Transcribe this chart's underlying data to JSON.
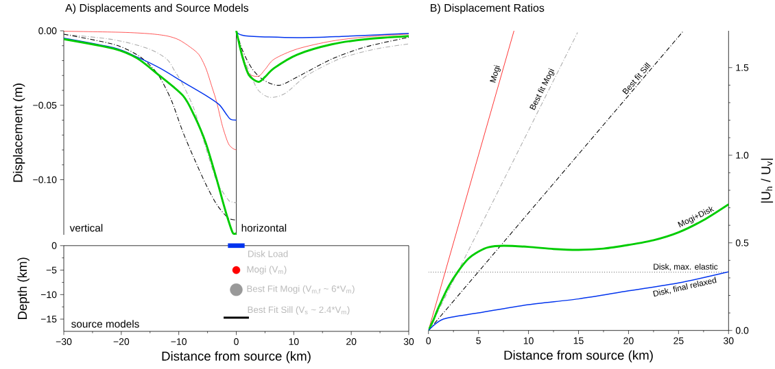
{
  "chart_data": [
    {
      "type": "line",
      "title": "A) Displacements and Source Models",
      "ylabel": "Displacement (m)",
      "xlim": [
        -30,
        30
      ],
      "ylim": [
        -0.137,
        0
      ],
      "tick_labels": "y",
      "xticks": [
        -30,
        -20,
        -10,
        0,
        10,
        20,
        30
      ],
      "yticks": [
        {
          "value": 0,
          "label": "0.00"
        },
        {
          "value": -0.05,
          "label": "−0.05"
        },
        {
          "value": -0.1,
          "label": "−0.10"
        }
      ],
      "annotations": [
        "vertical",
        "horizontal"
      ],
      "ref_lines": [
        {
          "axis": "x",
          "value": 0,
          "color": "#000000"
        }
      ],
      "series": [
        {
          "color": "#ff0000",
          "x": [
            -30,
            -20,
            -15,
            -12,
            -10,
            -8,
            -6.5,
            -5.3,
            -4.2,
            -3.4,
            -2.4,
            -1.4,
            -0.6,
            0
          ],
          "values": [
            -0.0003,
            -0.001,
            -0.002,
            -0.0035,
            -0.006,
            -0.011,
            -0.016,
            -0.025,
            -0.038,
            -0.048,
            -0.064,
            -0.0755,
            -0.079,
            -0.08
          ]
        },
        {
          "color": "#aaaaaa",
          "line_style": "dashdot",
          "x": [
            -30,
            -21.3,
            -15.3,
            -12.1,
            -10.7,
            -9.3,
            -7.3,
            -5.3,
            -3.4,
            -1.4,
            -0.6,
            0
          ],
          "values": [
            -0.0023,
            -0.006,
            -0.012,
            -0.019,
            -0.027,
            -0.036,
            -0.053,
            -0.0785,
            -0.101,
            -0.1135,
            -0.115,
            -0.1155
          ]
        },
        {
          "color": "#000000",
          "line_style": "dashdot",
          "x": [
            -30,
            -21.3,
            -17.3,
            -14.9,
            -13.3,
            -11.3,
            -9.3,
            -7.3,
            -5.3,
            -3.4,
            -1.4,
            0
          ],
          "values": [
            -0.0023,
            -0.0091,
            -0.016,
            -0.0236,
            -0.0313,
            -0.0465,
            -0.0678,
            -0.086,
            -0.103,
            -0.1166,
            -0.1257,
            -0.127
          ]
        },
        {
          "color": "#0033ee",
          "x": [
            -30,
            -21.3,
            -17.3,
            -13.3,
            -9.3,
            -5.3,
            -3,
            -1.8,
            -1,
            0
          ],
          "values": [
            -0.0049,
            -0.0114,
            -0.0175,
            -0.025,
            -0.0343,
            -0.0434,
            -0.0495,
            -0.0556,
            -0.0594,
            -0.06
          ]
        },
        {
          "color": "#00cc00",
          "x": [
            -30,
            -21.3,
            -17.3,
            -13.7,
            -9.3,
            -7.3,
            -5.3,
            -3.4,
            -2.2,
            -1.4,
            -0.6,
            0
          ],
          "values": [
            -0.0056,
            -0.012,
            -0.0183,
            -0.029,
            -0.0434,
            -0.057,
            -0.0754,
            -0.0998,
            -0.1166,
            -0.127,
            -0.1357,
            -0.136
          ]
        },
        {
          "color": "#ff0000",
          "x": [
            0,
            1.07,
            2.2,
            3.85,
            5,
            6.6,
            10.6,
            16.6,
            22.6,
            30
          ],
          "values": [
            0,
            -0.016,
            -0.0285,
            -0.0305,
            -0.026,
            -0.019,
            -0.0122,
            -0.0069,
            -0.0041,
            -0.0022
          ]
        },
        {
          "color": "#aaaaaa",
          "line_style": "dashdot",
          "x": [
            0,
            1.07,
            2.67,
            3.85,
            5.85,
            8.5,
            12.4,
            18.3,
            24.3,
            30
          ],
          "values": [
            0,
            -0.016,
            -0.031,
            -0.04,
            -0.0447,
            -0.042,
            -0.0297,
            -0.0183,
            -0.0122,
            -0.0088
          ]
        },
        {
          "color": "#000000",
          "line_style": "dashdot",
          "x": [
            0,
            1.07,
            2.67,
            4.65,
            7.4,
            10.6,
            16.6,
            22.6,
            30
          ],
          "values": [
            0,
            -0.013,
            -0.025,
            -0.0328,
            -0.0366,
            -0.031,
            -0.019,
            -0.0107,
            -0.0044
          ]
        },
        {
          "color": "#0033ee",
          "x": [
            0,
            1.5,
            10.6,
            18.3,
            30
          ],
          "values": [
            0,
            -0.0033,
            -0.0046,
            -0.0038,
            -0.0017
          ]
        },
        {
          "color": "#00cc00",
          "x": [
            0,
            1.07,
            2.2,
            3.85,
            5,
            6.6,
            10.6,
            16.6,
            22.6,
            30
          ],
          "values": [
            0,
            -0.0175,
            -0.0297,
            -0.0343,
            -0.031,
            -0.025,
            -0.016,
            -0.0091,
            -0.0056,
            -0.0036
          ]
        }
      ]
    },
    {
      "type": "scatter",
      "xlabel": "Distance from source (km)",
      "ylabel": "Depth (km)",
      "xlim": [
        -30,
        30
      ],
      "ylim": [
        -17.5,
        0
      ],
      "xticks": [
        {
          "value": -30,
          "label": "−30"
        },
        {
          "value": -20,
          "label": "−20"
        },
        {
          "value": -10,
          "label": "−10"
        },
        0,
        10,
        20,
        30
      ],
      "yticks": [
        0,
        {
          "value": -5,
          "label": "−5"
        },
        {
          "value": -10,
          "label": "−10"
        },
        {
          "value": -15,
          "label": "−15"
        }
      ],
      "annotations": [
        "source models"
      ],
      "series": [
        {
          "name": "Disk Load",
          "type": "line",
          "marker": "none",
          "color": "#0033ee",
          "x": [
            -1.45,
            1.45
          ],
          "values": [
            0,
            0
          ]
        },
        {
          "name": "Mogi (V$_{m}$)",
          "color": "#ff0000",
          "x": [
            0
          ],
          "values": [
            -5
          ]
        },
        {
          "name": "Best Fit Mogi (V$_{m,f}$ ~ 6*V$_{m}$)",
          "color": "#999999",
          "x": [
            0
          ],
          "values": [
            -9
          ]
        },
        {
          "name": "Best Fit Sill (V$_{s}$ ~ 2.4*V$_{m}$)",
          "type": "line",
          "marker": "none",
          "color": "#000000",
          "x": [
            -2.2,
            2.2
          ],
          "values": [
            -14.7,
            -14.7
          ]
        }
      ]
    },
    {
      "type": "line",
      "title": "B) Displacement Ratios",
      "xlabel": "Distance from source (km)",
      "ylabel": "|U$_{h}$ / U$_{v}$|",
      "xlim": [
        0,
        30
      ],
      "ylim": [
        0,
        1.71
      ],
      "xticks": [
        0,
        5,
        10,
        15,
        20,
        25,
        30
      ],
      "yticks": [
        {
          "value": 0,
          "label": "0.0"
        },
        0.5,
        {
          "value": 1,
          "label": "1.0"
        },
        1.5
      ],
      "ref_lines": [
        {
          "axis": "y",
          "value": 0.333,
          "label": "Disk, max. elastic",
          "color": "#000000",
          "line_style": "dotted"
        }
      ],
      "series": [
        {
          "name": "Mogi",
          "color": "#ff0000",
          "x": [
            0,
            8.55
          ],
          "values": [
            0,
            1.71
          ]
        },
        {
          "name": "Best fit Mogi",
          "color": "#aaaaaa",
          "line_style": "dashdot",
          "x": [
            0,
            14.9
          ],
          "values": [
            0,
            1.7
          ]
        },
        {
          "name": "Best fit Sill",
          "color": "#000000",
          "line_style": "dashdot",
          "x": [
            0,
            25.5
          ],
          "values": [
            0,
            1.71
          ]
        },
        {
          "name": "Mogi+Disk",
          "color": "#00cc00",
          "x": [
            0,
            0.5,
            1,
            2,
            3,
            4,
            5,
            6,
            7.5,
            10,
            12.5,
            15,
            17.5,
            20,
            22.5,
            25,
            27.5,
            30
          ],
          "values": [
            0,
            0.06,
            0.13,
            0.25,
            0.34,
            0.41,
            0.45,
            0.475,
            0.483,
            0.477,
            0.465,
            0.46,
            0.467,
            0.488,
            0.515,
            0.56,
            0.63,
            0.72
          ]
        },
        {
          "name": "Disk, final relaxed",
          "color": "#0033ee",
          "x": [
            0,
            1.5,
            5,
            10,
            15,
            20,
            25,
            30
          ],
          "values": [
            0,
            0.065,
            0.1,
            0.147,
            0.18,
            0.226,
            0.271,
            0.335
          ]
        }
      ]
    }
  ]
}
